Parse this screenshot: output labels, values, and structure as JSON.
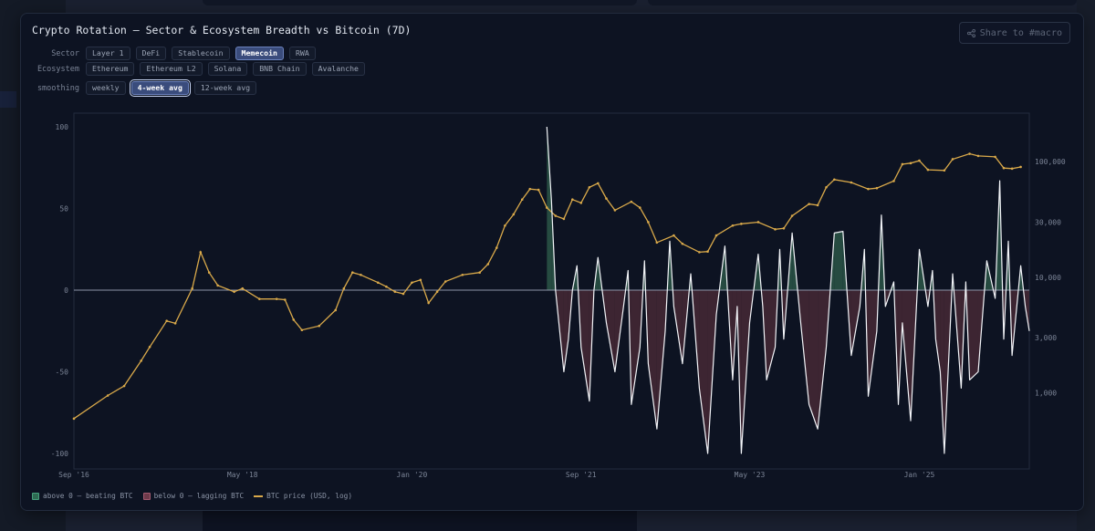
{
  "title": "Crypto Rotation — Sector & Ecosystem Breadth vs Bitcoin (7D)",
  "share": {
    "label": "Share to #macro"
  },
  "filters": {
    "sector": {
      "label": "Sector",
      "options": [
        "Layer 1",
        "DeFi",
        "Stablecoin",
        "Memecoin",
        "RWA"
      ],
      "active": "Memecoin"
    },
    "ecosystem": {
      "label": "Ecosystem",
      "options": [
        "Ethereum",
        "Ethereum L2",
        "Solana",
        "BNB Chain",
        "Avalanche"
      ],
      "active": null
    },
    "smoothing": {
      "label": "smoothing",
      "options": [
        "weekly",
        "4-week avg",
        "12-week avg"
      ],
      "active": "4-week avg"
    }
  },
  "legend": {
    "above": "above 0 — beating BTC",
    "below": "below 0 — lagging BTC",
    "btc": "BTC price (USD, log)"
  },
  "colors": {
    "above": "#46a07d",
    "below": "#a35a70",
    "btc": "#d9a94a",
    "breadth": "#f2f4f8",
    "zero": "#8b93a6"
  },
  "chart_data": {
    "type": "line",
    "x_labels": [
      "Sep '16",
      "May '18",
      "Jan '20",
      "Sep '21",
      "May '23",
      "Jan '25"
    ],
    "y_left": {
      "ticks": [
        "100",
        "50",
        "0",
        "-50",
        "-100"
      ],
      "range": [
        -100,
        100
      ]
    },
    "y_right": {
      "scale": "log",
      "ticks": [
        "100,000",
        "30,000",
        "10,000",
        "3,000",
        "1,000"
      ],
      "range": [
        300,
        200000
      ]
    },
    "btc_price_points": [
      [
        "2016-09",
        600
      ],
      [
        "2017-01",
        950
      ],
      [
        "2017-03",
        1150
      ],
      [
        "2017-05",
        1900
      ],
      [
        "2017-06",
        2500
      ],
      [
        "2017-08",
        4200
      ],
      [
        "2017-09",
        4000
      ],
      [
        "2017-11",
        8000
      ],
      [
        "2017-12",
        16500
      ],
      [
        "2018-01",
        11000
      ],
      [
        "2018-02",
        8500
      ],
      [
        "2018-04",
        7500
      ],
      [
        "2018-05",
        8000
      ],
      [
        "2018-07",
        6500
      ],
      [
        "2018-09",
        6500
      ],
      [
        "2018-10",
        6400
      ],
      [
        "2018-11",
        4300
      ],
      [
        "2018-12",
        3500
      ],
      [
        "2019-02",
        3800
      ],
      [
        "2019-04",
        5200
      ],
      [
        "2019-05",
        8000
      ],
      [
        "2019-06",
        11000
      ],
      [
        "2019-07",
        10500
      ],
      [
        "2019-09",
        9000
      ],
      [
        "2019-10",
        8300
      ],
      [
        "2019-11",
        7500
      ],
      [
        "2019-12",
        7200
      ],
      [
        "2020-01",
        9000
      ],
      [
        "2020-02",
        9500
      ],
      [
        "2020-03",
        6000
      ],
      [
        "2020-04",
        7500
      ],
      [
        "2020-05",
        9200
      ],
      [
        "2020-07",
        10500
      ],
      [
        "2020-09",
        11000
      ],
      [
        "2020-10",
        13000
      ],
      [
        "2020-11",
        18000
      ],
      [
        "2020-12",
        28000
      ],
      [
        "2021-01",
        35000
      ],
      [
        "2021-02",
        47000
      ],
      [
        "2021-03",
        58000
      ],
      [
        "2021-04",
        57000
      ],
      [
        "2021-05",
        40000
      ],
      [
        "2021-06",
        34000
      ],
      [
        "2021-07",
        32000
      ],
      [
        "2021-08",
        47000
      ],
      [
        "2021-09",
        44000
      ],
      [
        "2021-10",
        60000
      ],
      [
        "2021-11",
        65000
      ],
      [
        "2021-12",
        48000
      ],
      [
        "2022-01",
        38000
      ],
      [
        "2022-03",
        45000
      ],
      [
        "2022-04",
        40000
      ],
      [
        "2022-05",
        30000
      ],
      [
        "2022-06",
        20000
      ],
      [
        "2022-08",
        23000
      ],
      [
        "2022-09",
        19500
      ],
      [
        "2022-11",
        16500
      ],
      [
        "2022-12",
        16700
      ],
      [
        "2023-01",
        23000
      ],
      [
        "2023-03",
        28000
      ],
      [
        "2023-04",
        29000
      ],
      [
        "2023-06",
        30000
      ],
      [
        "2023-08",
        26000
      ],
      [
        "2023-09",
        26500
      ],
      [
        "2023-10",
        34000
      ],
      [
        "2023-12",
        43000
      ],
      [
        "2024-01",
        42000
      ],
      [
        "2024-02",
        60000
      ],
      [
        "2024-03",
        70000
      ],
      [
        "2024-05",
        66000
      ],
      [
        "2024-07",
        58000
      ],
      [
        "2024-08",
        59000
      ],
      [
        "2024-10",
        68000
      ],
      [
        "2024-11",
        95000
      ],
      [
        "2024-12",
        97000
      ],
      [
        "2025-01",
        102000
      ],
      [
        "2025-02",
        85000
      ],
      [
        "2025-04",
        84000
      ],
      [
        "2025-05",
        105000
      ],
      [
        "2025-07",
        117000
      ],
      [
        "2025-08",
        112000
      ],
      [
        "2025-10",
        110000
      ],
      [
        "2025-11",
        88000
      ],
      [
        "2025-12",
        87000
      ],
      [
        "2026-01",
        90000
      ]
    ],
    "breadth_points": [
      [
        "2021-05",
        100
      ],
      [
        "2021-05",
        55
      ],
      [
        "2021-06",
        0
      ],
      [
        "2021-07",
        -50
      ],
      [
        "2021-07",
        -30
      ],
      [
        "2021-08",
        0
      ],
      [
        "2021-08",
        15
      ],
      [
        "2021-09",
        -35
      ],
      [
        "2021-10",
        -68
      ],
      [
        "2021-10",
        0
      ],
      [
        "2021-11",
        20
      ],
      [
        "2021-12",
        -20
      ],
      [
        "2022-01",
        -50
      ],
      [
        "2022-02",
        -10
      ],
      [
        "2022-02",
        12
      ],
      [
        "2022-03",
        -70
      ],
      [
        "2022-04",
        -35
      ],
      [
        "2022-04",
        18
      ],
      [
        "2022-05",
        -45
      ],
      [
        "2022-06",
        -85
      ],
      [
        "2022-07",
        -25
      ],
      [
        "2022-07",
        30
      ],
      [
        "2022-08",
        -10
      ],
      [
        "2022-09",
        -45
      ],
      [
        "2022-10",
        10
      ],
      [
        "2022-11",
        -60
      ],
      [
        "2022-12",
        -100
      ],
      [
        "2023-01",
        -15
      ],
      [
        "2023-02",
        27
      ],
      [
        "2023-03",
        -55
      ],
      [
        "2023-03",
        -10
      ],
      [
        "2023-04",
        -100
      ],
      [
        "2023-05",
        -20
      ],
      [
        "2023-06",
        22
      ],
      [
        "2023-06",
        -10
      ],
      [
        "2023-07",
        -55
      ],
      [
        "2023-08",
        -35
      ],
      [
        "2023-08",
        25
      ],
      [
        "2023-09",
        -30
      ],
      [
        "2023-10",
        35
      ],
      [
        "2023-11",
        -20
      ],
      [
        "2023-12",
        -70
      ],
      [
        "2024-01",
        -85
      ],
      [
        "2024-02",
        -35
      ],
      [
        "2024-03",
        35
      ],
      [
        "2024-04",
        36
      ],
      [
        "2024-05",
        -40
      ],
      [
        "2024-06",
        -10
      ],
      [
        "2024-06",
        25
      ],
      [
        "2024-07",
        -65
      ],
      [
        "2024-08",
        -25
      ],
      [
        "2024-08",
        46
      ],
      [
        "2024-09",
        -10
      ],
      [
        "2024-10",
        5
      ],
      [
        "2024-10",
        -70
      ],
      [
        "2024-11",
        -20
      ],
      [
        "2024-12",
        -80
      ],
      [
        "2025-01",
        25
      ],
      [
        "2025-02",
        -10
      ],
      [
        "2025-02",
        12
      ],
      [
        "2025-03",
        -30
      ],
      [
        "2025-03",
        -50
      ],
      [
        "2025-04",
        -100
      ],
      [
        "2025-05",
        10
      ],
      [
        "2025-06",
        -60
      ],
      [
        "2025-06",
        5
      ],
      [
        "2025-07",
        -55
      ],
      [
        "2025-08",
        -50
      ],
      [
        "2025-09",
        18
      ],
      [
        "2025-10",
        -5
      ],
      [
        "2025-10",
        67
      ],
      [
        "2025-11",
        -30
      ],
      [
        "2025-11",
        30
      ],
      [
        "2025-12",
        -40
      ],
      [
        "2026-01",
        15
      ],
      [
        "2026-01",
        -10
      ],
      [
        "2026-02",
        -25
      ]
    ]
  }
}
